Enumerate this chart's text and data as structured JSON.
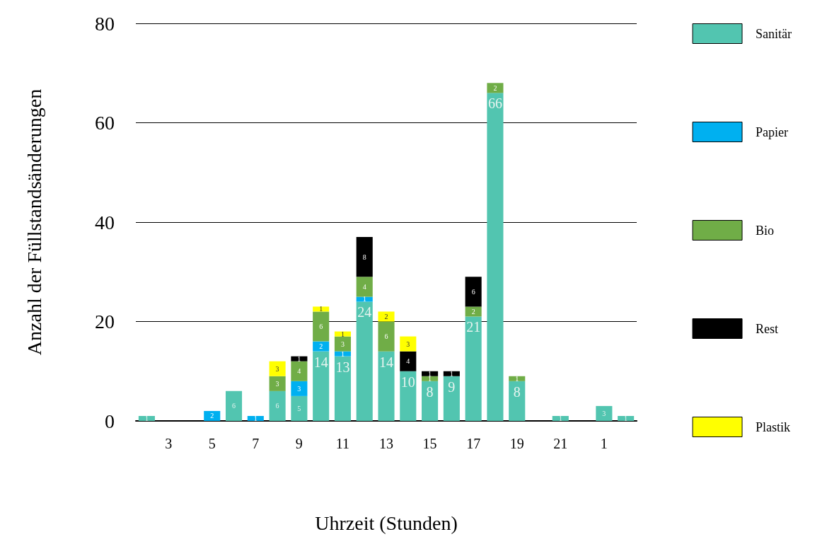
{
  "chart_data": {
    "type": "bar",
    "stacked": true,
    "xlabel": "Uhrzeit (Stunden)",
    "ylabel": "Anzahl der Füllstandsänderungen",
    "categories": [
      null,
      "3",
      null,
      "5",
      null,
      "7",
      null,
      "9",
      null,
      "11",
      null,
      "13",
      null,
      "15",
      null,
      "17",
      null,
      "19",
      null,
      "21",
      null,
      "1",
      null
    ],
    "series": [
      {
        "name": "Sanitär",
        "color": "#52c5b0",
        "values": [
          1,
          null,
          null,
          null,
          6,
          null,
          6,
          5,
          14,
          13,
          24,
          14,
          10,
          8,
          9,
          21,
          66,
          8,
          null,
          1,
          null,
          3,
          1
        ]
      },
      {
        "name": "Papier",
        "color": "#00b0f0",
        "values": [
          null,
          null,
          null,
          2,
          null,
          1,
          null,
          3,
          2,
          1,
          1,
          null,
          null,
          null,
          null,
          null,
          null,
          null,
          null,
          null,
          null,
          null,
          null
        ]
      },
      {
        "name": "Bio",
        "color": "#70ad47",
        "values": [
          null,
          null,
          null,
          null,
          null,
          null,
          3,
          4,
          6,
          3,
          4,
          6,
          null,
          1,
          null,
          2,
          2,
          1,
          null,
          null,
          null,
          null,
          null
        ]
      },
      {
        "name": "Rest",
        "color": "#000000",
        "values": [
          null,
          null,
          null,
          null,
          null,
          null,
          null,
          1,
          null,
          null,
          8,
          null,
          4,
          1,
          1,
          6,
          null,
          null,
          null,
          null,
          null,
          null,
          null
        ]
      },
      {
        "name": "Plastik",
        "color": "#ffff00",
        "values": [
          null,
          null,
          null,
          null,
          null,
          null,
          3,
          null,
          1,
          1,
          null,
          2,
          3,
          null,
          null,
          null,
          null,
          null,
          null,
          null,
          null,
          null,
          null
        ]
      }
    ],
    "ylim": [
      0,
      80
    ],
    "yticks": [
      0,
      20,
      40,
      60,
      80
    ],
    "grid": "y",
    "legend": "right",
    "data_labels": true
  }
}
